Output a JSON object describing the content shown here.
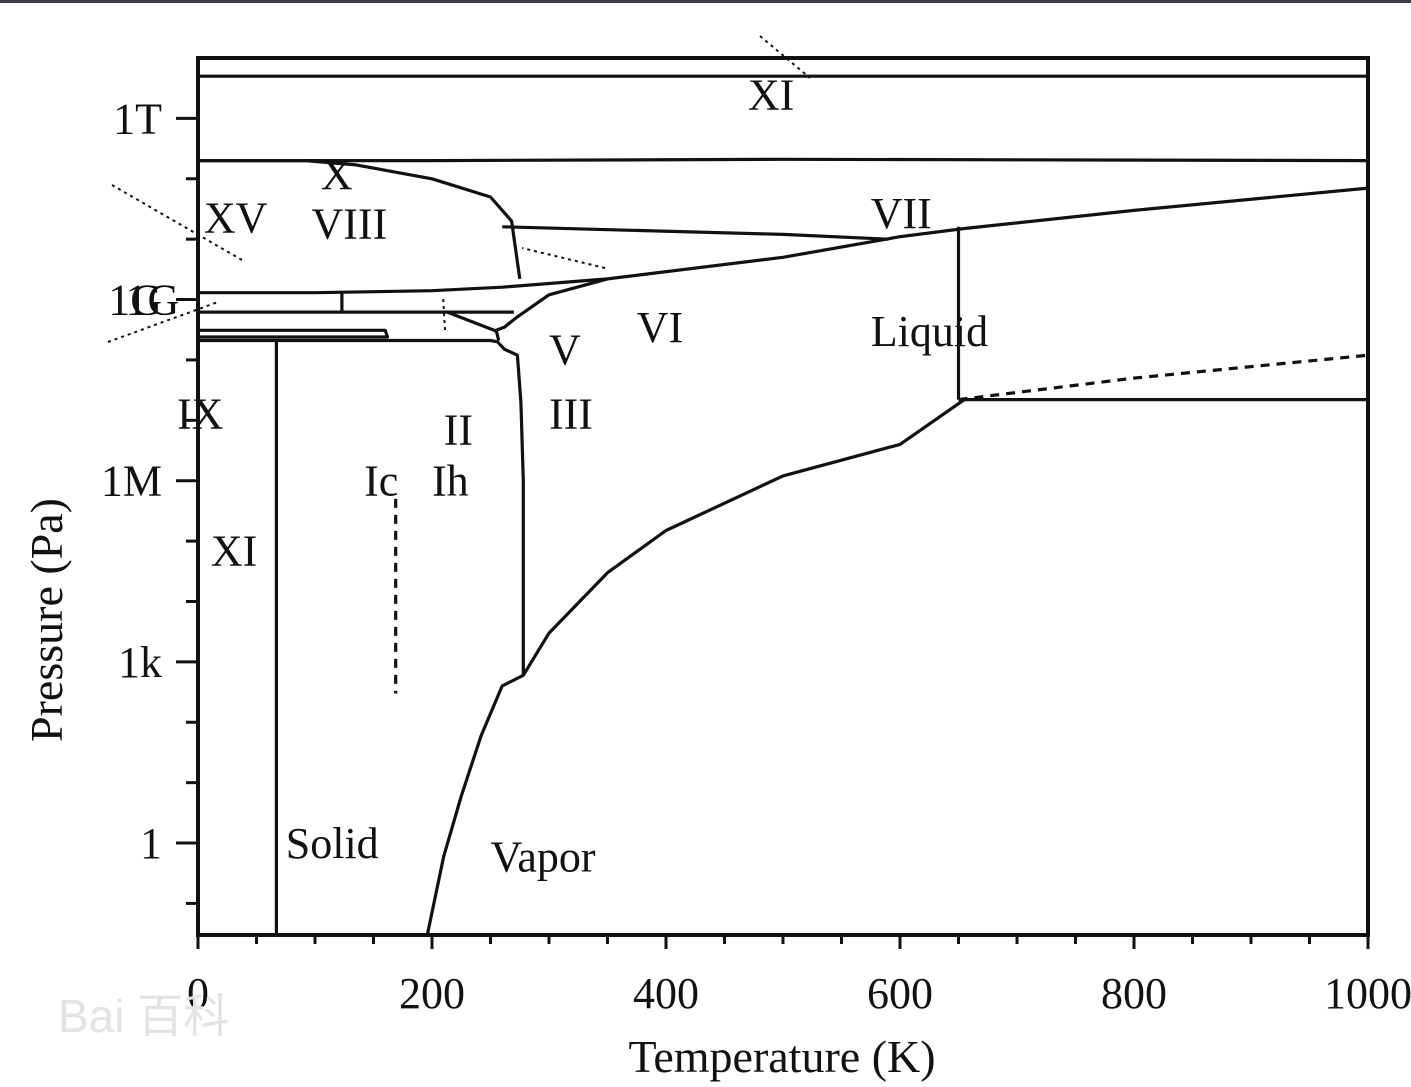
{
  "chart_data": {
    "type": "line",
    "xlabel": "Temperature (K)",
    "ylabel": "Pressure (Pa)",
    "xlim": [
      0,
      1000
    ],
    "y_scale": "log",
    "ylim": [
      0.03,
      10000000000000.0
    ],
    "x_ticks": [
      {
        "value": 0,
        "label": "0"
      },
      {
        "value": 200,
        "label": "200"
      },
      {
        "value": 400,
        "label": "400"
      },
      {
        "value": 600,
        "label": "600"
      },
      {
        "value": 800,
        "label": "800"
      },
      {
        "value": 1000,
        "label": "1000"
      }
    ],
    "y_ticks": [
      {
        "value": 1,
        "label": "1"
      },
      {
        "value": 1000,
        "label": "1k"
      },
      {
        "value": 1000000,
        "label": "1M"
      },
      {
        "value": 1000000000,
        "label": "1G"
      },
      {
        "value": 1000000000000,
        "label": "1T"
      }
    ],
    "region_labels": [
      {
        "text": "XI",
        "x": 470,
        "y": 2500000000000.0
      },
      {
        "text": "X",
        "x": 105,
        "y": 120000000000.0
      },
      {
        "text": "VIII",
        "x": 97,
        "y": 18000000000.0
      },
      {
        "text": "VII",
        "x": 575,
        "y": 27000000000.0
      },
      {
        "text": "XV",
        "x": 5,
        "y": 23000000000.0
      },
      {
        "text": "1G",
        "x": -62,
        "y": 1000000000.0
      },
      {
        "text": "VI",
        "x": 375,
        "y": 350000000.0
      },
      {
        "text": "V",
        "x": 300,
        "y": 150000000.0
      },
      {
        "text": "Liquid",
        "x": 575,
        "y": 300000000.0
      },
      {
        "text": "IX",
        "x": -18,
        "y": 13000000.0
      },
      {
        "text": "II",
        "x": 210,
        "y": 7000000.0
      },
      {
        "text": "III",
        "x": 300,
        "y": 13000000.0
      },
      {
        "text": "Ic",
        "x": 142,
        "y": 1000000.0
      },
      {
        "text": "Ih",
        "x": 200,
        "y": 1000000.0
      },
      {
        "text": "XI",
        "x": 11,
        "y": 70000.0
      },
      {
        "text": "Solid",
        "x": 75,
        "y": 1
      },
      {
        "text": "Vapor",
        "x": 250,
        "y": 0.6
      }
    ],
    "boundaries": [
      {
        "points": [
          [
            0,
            5000000000000.0
          ],
          [
            1000,
            5000000000000.0
          ]
        ]
      },
      {
        "points": [
          [
            0,
            200000000000.0
          ],
          [
            200,
            200000000000.0
          ],
          [
            500,
            210000000000.0
          ],
          [
            1000,
            200000000000.0
          ]
        ]
      },
      {
        "points": [
          [
            0,
            200000000000.0
          ],
          [
            92,
            200000000000.0
          ],
          [
            135,
            170000000000.0
          ],
          [
            200,
            100000000000.0
          ],
          [
            250,
            50000000000.0
          ],
          [
            268,
            20000000000.0
          ],
          [
            275,
            2200000000.0
          ]
        ]
      },
      {
        "points": [
          [
            260,
            16000000000.0
          ],
          [
            500,
            12000000000.0
          ],
          [
            590,
            10000000000.0
          ]
        ]
      },
      {
        "points": [
          [
            0,
            1300000000.0
          ],
          [
            100,
            1300000000.0
          ],
          [
            200,
            1400000000.0
          ],
          [
            260,
            1600000000.0
          ],
          [
            350,
            2200000000.0
          ],
          [
            500,
            5000000000.0
          ],
          [
            600,
            11000000000.0
          ],
          [
            655,
            15000000000.0
          ],
          [
            800,
            30000000000.0
          ],
          [
            1000,
            70000000000.0
          ],
          [
            1000,
            210000000000.0
          ]
        ]
      },
      {
        "points": [
          [
            0,
            620000000.0
          ],
          [
            100,
            620000000.0
          ],
          [
            200,
            620000000.0
          ],
          [
            270,
            620000000.0
          ]
        ]
      },
      {
        "points": [
          [
            123,
            1300000000.0
          ],
          [
            123,
            620000000.0
          ]
        ]
      },
      {
        "points": [
          [
            0,
            310000000.0
          ],
          [
            160,
            310000000.0
          ],
          [
            162,
            240000000.0
          ],
          [
            0,
            240000000.0
          ]
        ]
      },
      {
        "points": [
          [
            0,
            210000000.0
          ],
          [
            100,
            210000000.0
          ],
          [
            200,
            210000000.0
          ],
          [
            250,
            210000000.0
          ],
          [
            256,
            200000000.0
          ],
          [
            262,
            150000000.0
          ],
          [
            273,
            120000000.0
          ],
          [
            276,
            20000000.0
          ],
          [
            278,
            1000000.0
          ],
          [
            278,
            600.0
          ]
        ]
      },
      {
        "points": [
          [
            213,
            620000000.0
          ],
          [
            255,
            300000000.0
          ],
          [
            257,
            210000000.0
          ]
        ]
      },
      {
        "points": [
          [
            253,
            300000000.0
          ],
          [
            262,
            350000000.0
          ],
          [
            272,
            500000000.0
          ],
          [
            300,
            1200000000.0
          ],
          [
            350,
            2200000000.0
          ]
        ]
      },
      {
        "points": [
          [
            67,
            210000000.0
          ],
          [
            67,
            0.03
          ]
        ]
      },
      {
        "points": [
          [
            196,
            0.03
          ],
          [
            210,
            0.6
          ],
          [
            225,
            6
          ],
          [
            242,
            60
          ],
          [
            260,
            400
          ],
          [
            278,
            600
          ],
          [
            300,
            3000
          ],
          [
            350,
            30000.0
          ],
          [
            400,
            150000.0
          ],
          [
            500,
            1200000.0
          ],
          [
            600,
            4000000.0
          ],
          [
            655,
            22000000.0
          ]
        ]
      },
      {
        "points": [
          [
            650,
            16000000000.0
          ],
          [
            650,
            22000000.0
          ]
        ]
      },
      {
        "points": [
          [
            650,
            22000000.0
          ],
          [
            1000,
            22000000.0
          ]
        ]
      },
      {
        "dashed": true,
        "points": [
          [
            650,
            22000000.0
          ],
          [
            800,
            50000000.0
          ],
          [
            1000,
            120000000.0
          ]
        ]
      },
      {
        "dashed": true,
        "points": [
          [
            169,
            500000.0
          ],
          [
            169,
            300
          ]
        ]
      }
    ]
  },
  "watermark": "Bai 百科"
}
